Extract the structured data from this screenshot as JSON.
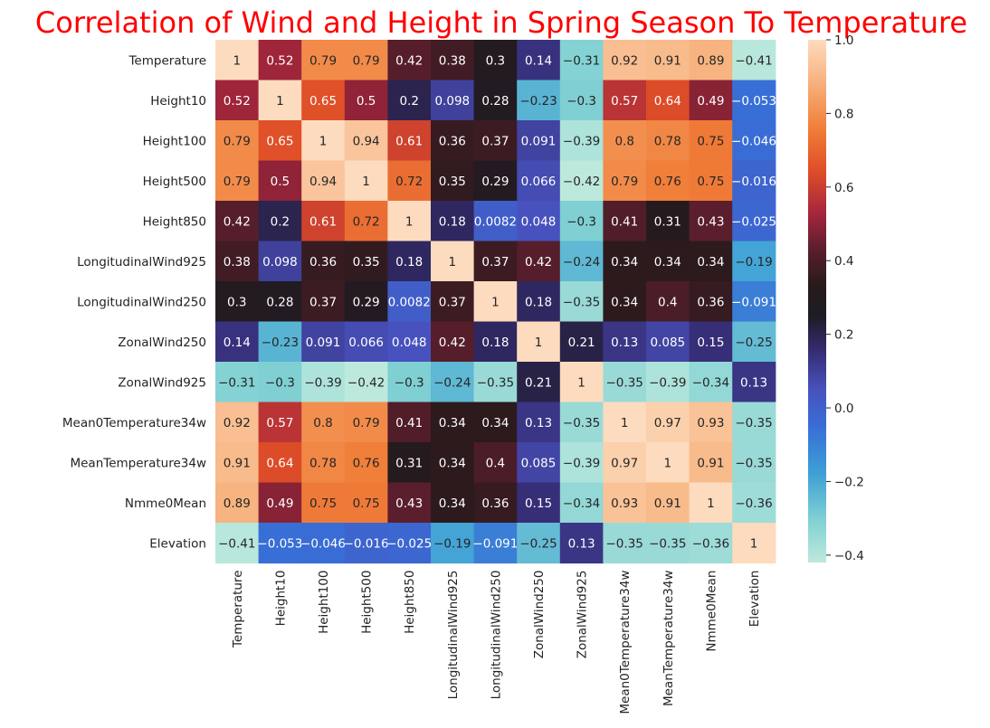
{
  "chart_data": {
    "type": "heatmap",
    "title": "Correlation of Wind and Height in Spring Season To Temperature",
    "variables": [
      "Temperature",
      "Height10",
      "Height100",
      "Height500",
      "Height850",
      "LongitudinalWind925",
      "LongitudinalWind250",
      "ZonalWind250",
      "ZonalWind925",
      "Mean0Temperature34w",
      "MeanTemperature34w",
      "Nmme0Mean",
      "Elevation"
    ],
    "values": [
      [
        1,
        0.52,
        0.79,
        0.79,
        0.42,
        0.38,
        0.3,
        0.14,
        -0.31,
        0.92,
        0.91,
        0.89,
        -0.41
      ],
      [
        0.52,
        1,
        0.65,
        0.5,
        0.2,
        0.098,
        0.28,
        -0.23,
        -0.3,
        0.57,
        0.64,
        0.49,
        -0.053
      ],
      [
        0.79,
        0.65,
        1,
        0.94,
        0.61,
        0.36,
        0.37,
        0.091,
        -0.39,
        0.8,
        0.78,
        0.75,
        -0.046
      ],
      [
        0.79,
        0.5,
        0.94,
        1,
        0.72,
        0.35,
        0.29,
        0.066,
        -0.42,
        0.79,
        0.76,
        0.75,
        -0.016
      ],
      [
        0.42,
        0.2,
        0.61,
        0.72,
        1,
        0.18,
        0.0082,
        0.048,
        -0.3,
        0.41,
        0.31,
        0.43,
        -0.025
      ],
      [
        0.38,
        0.098,
        0.36,
        0.35,
        0.18,
        1,
        0.37,
        0.42,
        -0.24,
        0.34,
        0.34,
        0.34,
        -0.19
      ],
      [
        0.3,
        0.28,
        0.37,
        0.29,
        0.0082,
        0.37,
        1,
        0.18,
        -0.35,
        0.34,
        0.4,
        0.36,
        -0.091
      ],
      [
        0.14,
        -0.23,
        0.091,
        0.066,
        0.048,
        0.42,
        0.18,
        1,
        0.21,
        0.13,
        0.085,
        0.15,
        -0.25
      ],
      [
        -0.31,
        -0.3,
        -0.39,
        -0.42,
        -0.3,
        -0.24,
        -0.35,
        0.21,
        1,
        -0.35,
        -0.39,
        -0.34,
        0.13
      ],
      [
        0.92,
        0.57,
        0.8,
        0.79,
        0.41,
        0.34,
        0.34,
        0.13,
        -0.35,
        1,
        0.97,
        0.93,
        -0.35
      ],
      [
        0.91,
        0.64,
        0.78,
        0.76,
        0.31,
        0.34,
        0.4,
        0.085,
        -0.39,
        0.97,
        1,
        0.91,
        -0.35
      ],
      [
        0.89,
        0.49,
        0.75,
        0.75,
        0.43,
        0.34,
        0.36,
        0.15,
        -0.34,
        0.93,
        0.91,
        1,
        -0.36
      ],
      [
        -0.41,
        -0.053,
        -0.046,
        -0.016,
        -0.025,
        -0.19,
        -0.091,
        -0.25,
        0.13,
        -0.35,
        -0.35,
        -0.36,
        1
      ]
    ],
    "colorbar": {
      "min": -0.42,
      "max": 1.0,
      "ticks": [
        1.0,
        0.8,
        0.6,
        0.4,
        0.2,
        0.0,
        -0.2,
        -0.4
      ],
      "tick_labels": [
        "1.0",
        "0.8",
        "0.6",
        "0.4",
        "0.2",
        "0.0",
        "−0.2",
        "−0.4"
      ],
      "colormap": "icefire"
    }
  }
}
